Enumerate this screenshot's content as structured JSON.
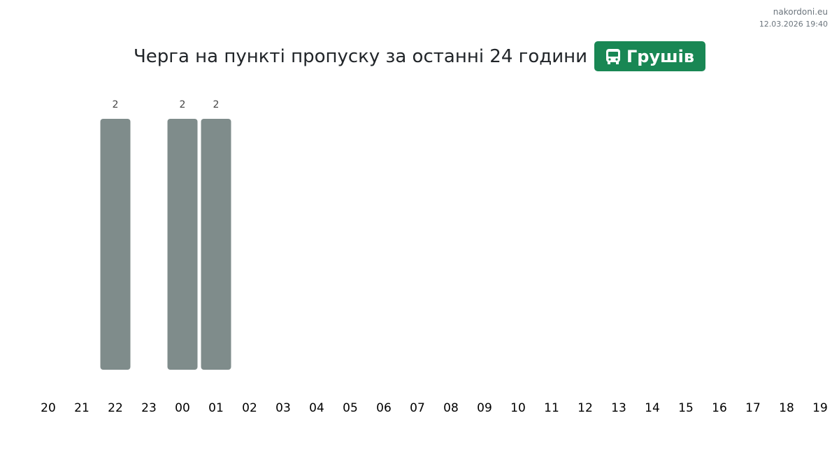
{
  "chart_data": {
    "type": "bar",
    "title": "Черга на пункті пропуску за останні 24 години",
    "badge": "Грушів",
    "site": "nakordoni.eu",
    "timestamp": "12.03.2026 19:40",
    "categories": [
      "20",
      "21",
      "22",
      "23",
      "00",
      "01",
      "02",
      "03",
      "04",
      "05",
      "06",
      "07",
      "08",
      "09",
      "10",
      "11",
      "12",
      "13",
      "14",
      "15",
      "16",
      "17",
      "18",
      "19"
    ],
    "values": [
      null,
      null,
      2,
      null,
      2,
      2,
      null,
      null,
      null,
      null,
      null,
      null,
      null,
      null,
      null,
      null,
      null,
      null,
      null,
      null,
      null,
      null,
      null,
      null
    ],
    "color": "#7f8c8b",
    "badge_color": "#198754"
  }
}
